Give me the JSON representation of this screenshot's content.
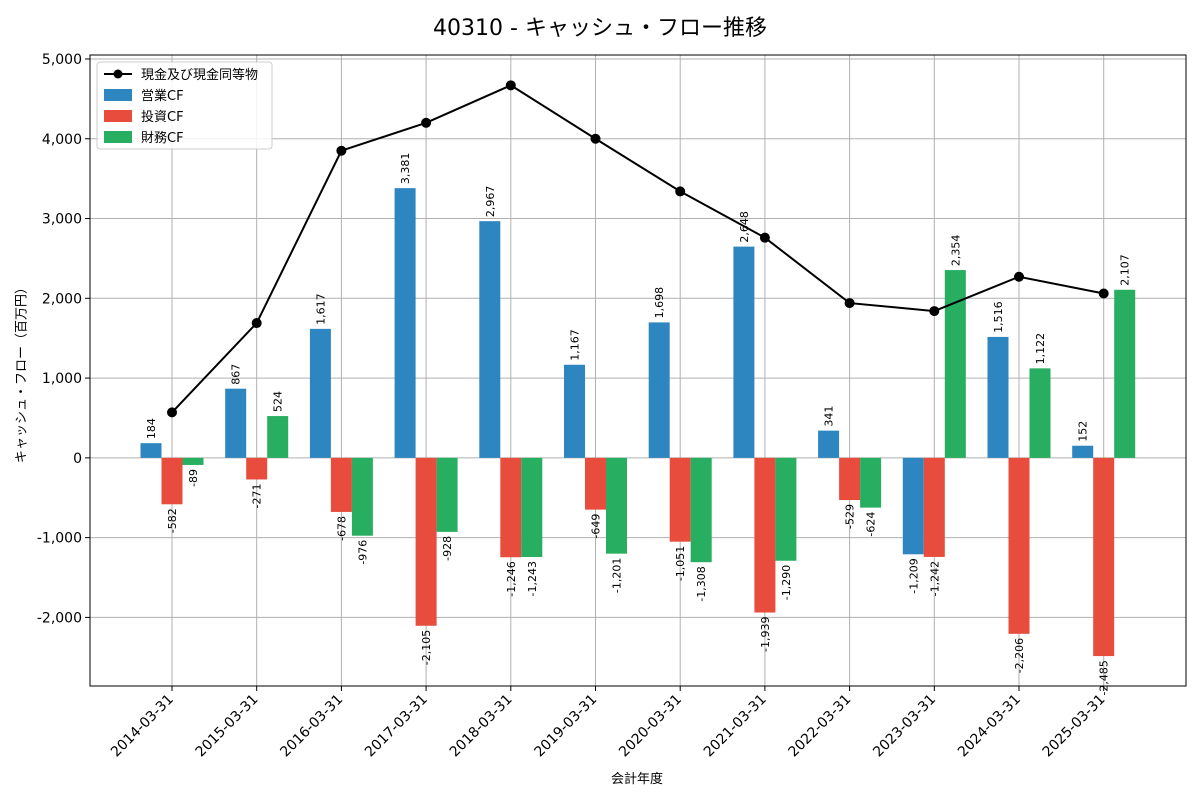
{
  "chart_data": {
    "type": "bar",
    "title": "40310 - キャッシュ・フロー推移",
    "xlabel": "会計年度",
    "ylabel": "キャッシュ・フロー（百万円）",
    "categories": [
      "2014-03-31",
      "2015-03-31",
      "2016-03-31",
      "2017-03-31",
      "2018-03-31",
      "2019-03-31",
      "2020-03-31",
      "2021-03-31",
      "2022-03-31",
      "2023-03-31",
      "2024-03-31",
      "2025-03-31"
    ],
    "ylim": [
      -2860,
      5050
    ],
    "yticks": [
      -2000,
      -1000,
      0,
      1000,
      2000,
      3000,
      4000,
      5000
    ],
    "ytick_labels": [
      "-2,000",
      "-1,000",
      "0",
      "1,000",
      "2,000",
      "3,000",
      "4,000",
      "5,000"
    ],
    "grid": true,
    "legend_position": "top-left",
    "series": [
      {
        "name": "営業CF",
        "kind": "bar",
        "color": "#2e86c1",
        "values": [
          184,
          867,
          1617,
          3381,
          2967,
          1167,
          1698,
          2648,
          341,
          -1209,
          1516,
          152
        ],
        "labels": [
          "184",
          "867",
          "1,617",
          "3,381",
          "2,967",
          "1,167",
          "1,698",
          "2,648",
          "341",
          "-1,209",
          "1,516",
          "152"
        ]
      },
      {
        "name": "投資CF",
        "kind": "bar",
        "color": "#e74c3c",
        "values": [
          -582,
          -271,
          -678,
          -2105,
          -1246,
          -649,
          -1051,
          -1939,
          -529,
          -1242,
          -2206,
          -2485
        ],
        "labels": [
          "-582",
          "-271",
          "-678",
          "-2,105",
          "-1,246",
          "-649",
          "-1,051",
          "-1,939",
          "-529",
          "-1,242",
          "-2,206",
          "-2,485"
        ]
      },
      {
        "name": "財務CF",
        "kind": "bar",
        "color": "#27ae60",
        "values": [
          -89,
          524,
          -976,
          -928,
          -1243,
          -1201,
          -1308,
          -1290,
          -624,
          2354,
          1122,
          2107
        ],
        "labels": [
          "-89",
          "524",
          "-976",
          "-928",
          "-1,243",
          "-1,201",
          "-1,308",
          "-1,290",
          "-624",
          "2,354",
          "1,122",
          "2,107"
        ]
      },
      {
        "name": "現金及び現金同等物",
        "kind": "line",
        "color": "#000000",
        "values": [
          570,
          1690,
          3850,
          4200,
          4670,
          4000,
          3340,
          2760,
          1940,
          1840,
          2270,
          2060
        ]
      }
    ]
  }
}
